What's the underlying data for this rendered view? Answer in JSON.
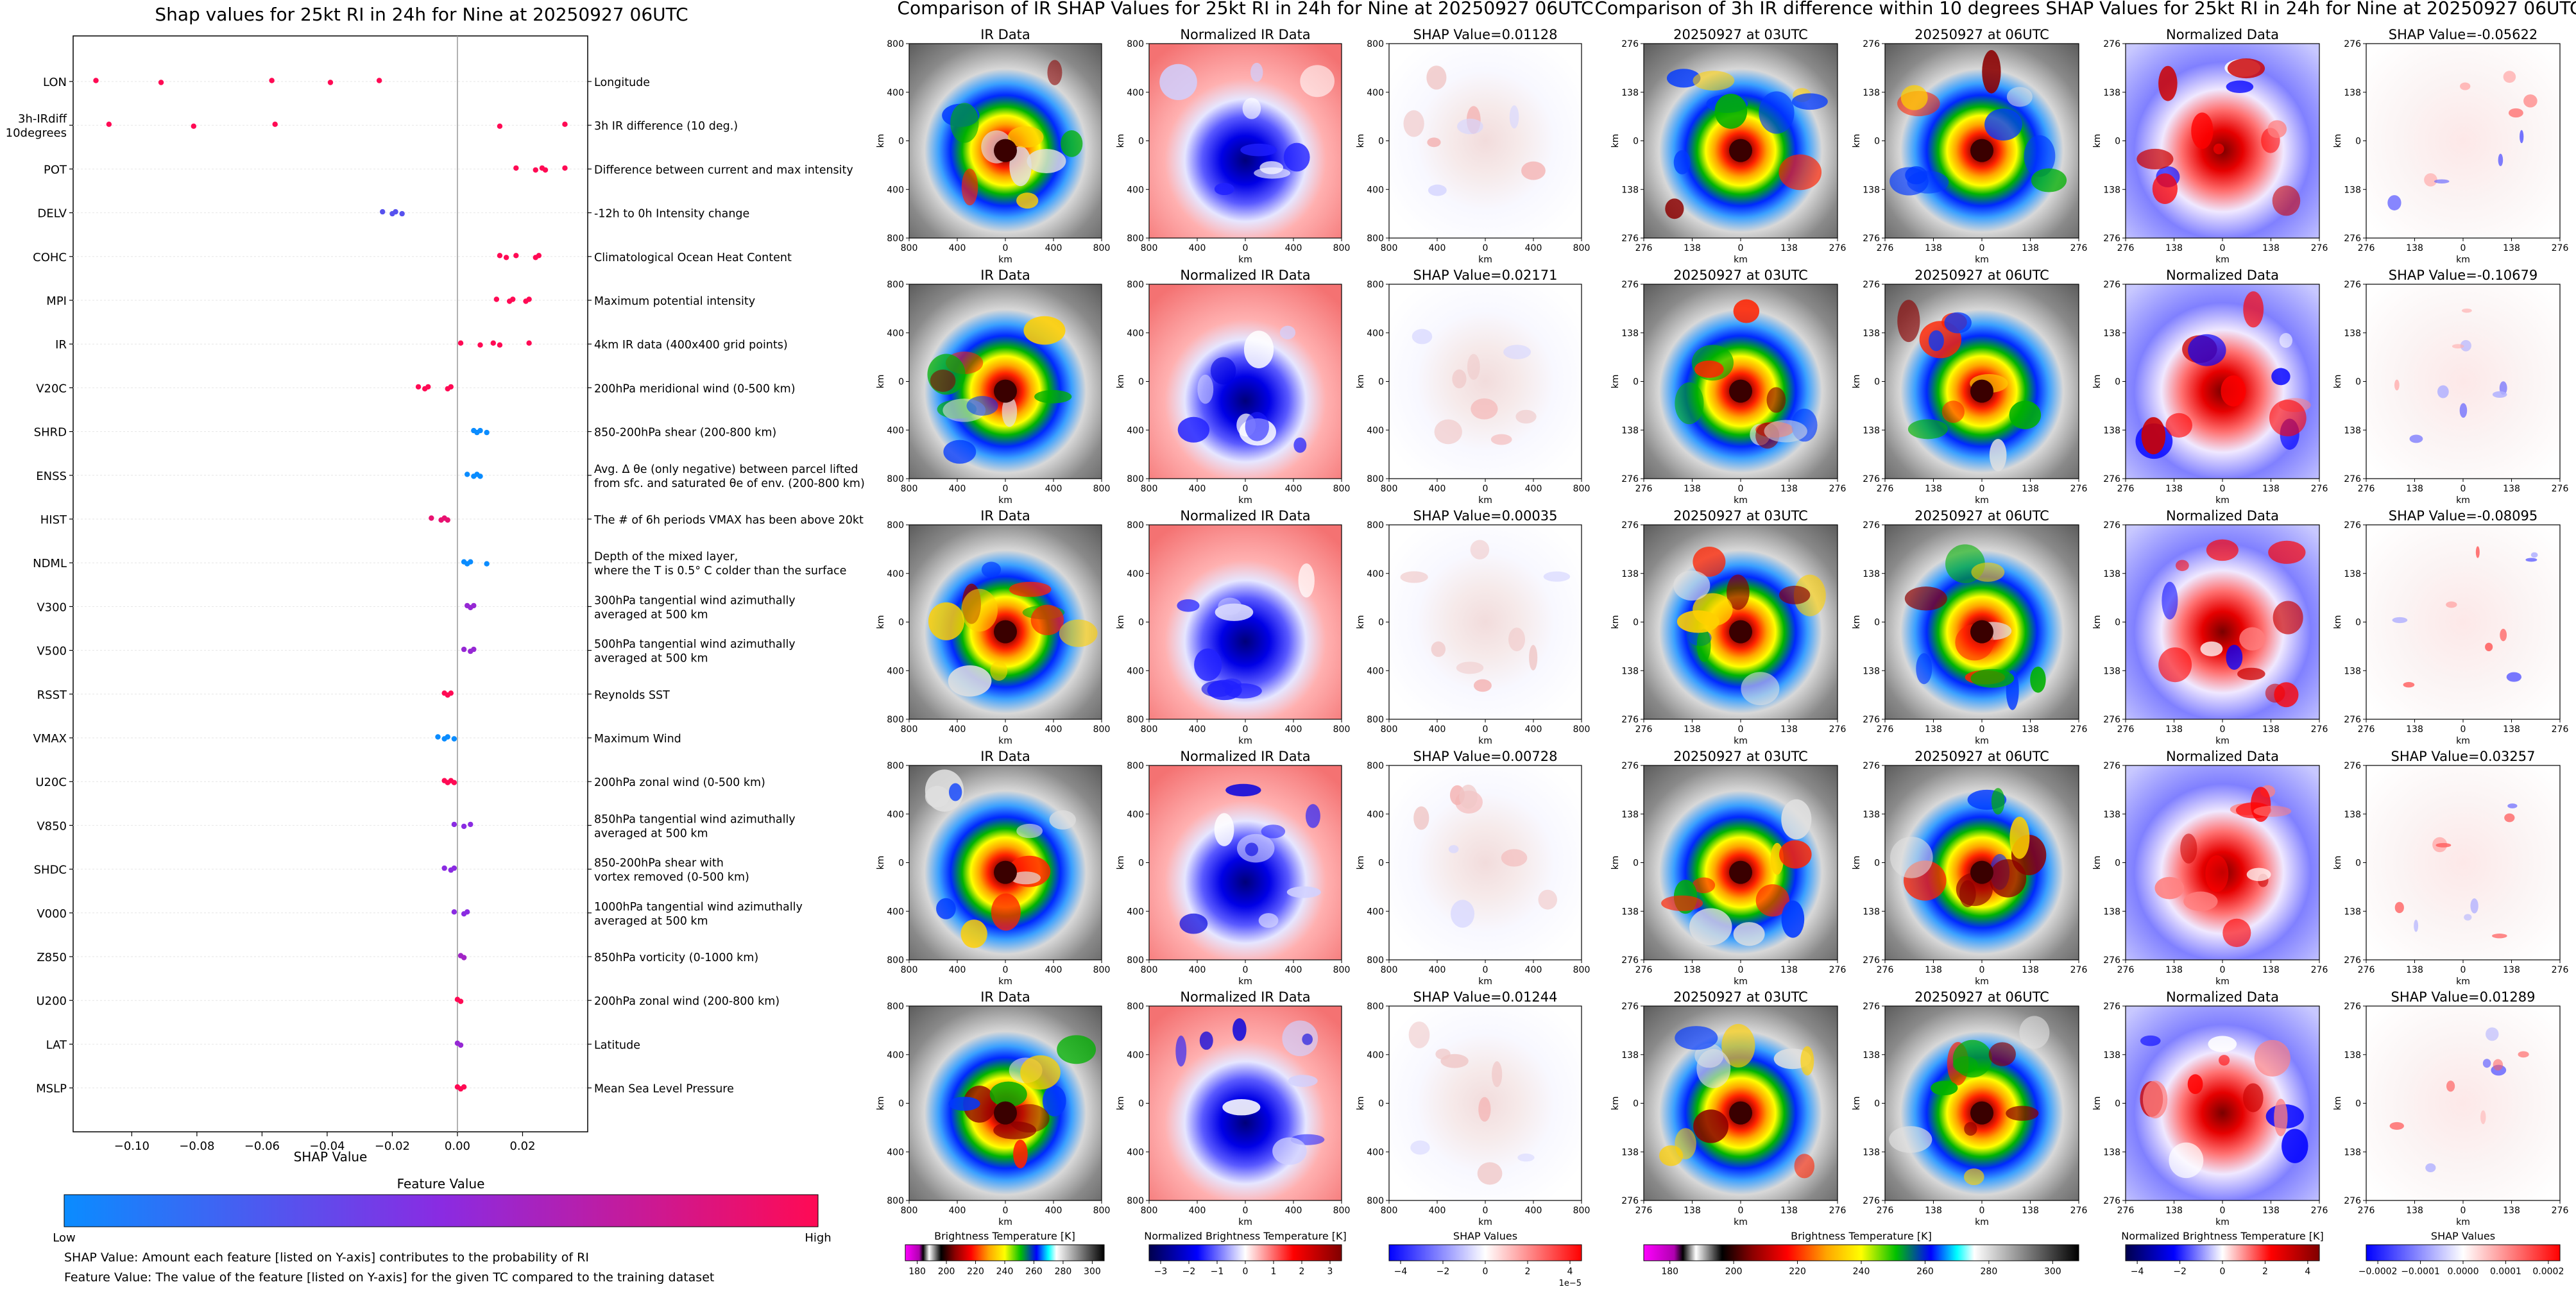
{
  "shap_panel": {
    "title": "Shap values for 25kt RI in 24h for Nine at 20250927 06UTC",
    "xlabel": "SHAP Value",
    "x_ticks": [
      "−0.10",
      "−0.08",
      "−0.06",
      "−0.04",
      "−0.02",
      "0.00",
      "0.02"
    ],
    "colorbar_title": "Feature Value",
    "colorbar_low": "Low",
    "colorbar_high": "High",
    "footnote_1": "SHAP Value: Amount each feature [listed on Y-axis] contributes to the probability of RI",
    "footnote_2": "Feature Value: The value of the feature [listed on Y-axis] for the given TC compared to the training dataset"
  },
  "ir_shap_section": {
    "title": "Comparison of IR SHAP Values for 25kt RI in 24h for Nine at 20250927 06UTC",
    "col_titles": [
      "IR Data",
      "Normalized IR Data"
    ],
    "shap_titles": [
      "SHAP Value=0.01128",
      "SHAP Value=0.02171",
      "SHAP Value=0.00035",
      "SHAP Value=0.00728",
      "SHAP Value=0.01244"
    ],
    "axis_unit": "km",
    "tick_labels": [
      "800",
      "400",
      "0",
      "400",
      "800"
    ],
    "colorbars": [
      {
        "title": "Brightness Temperature [K]",
        "ticks": [
          "180",
          "200",
          "220",
          "240",
          "260",
          "280",
          "300"
        ]
      },
      {
        "title": "Normalized Brightness Temperature [K]",
        "ticks": [
          "−3",
          "−2",
          "−1",
          "0",
          "1",
          "2",
          "3"
        ]
      },
      {
        "title": "SHAP Values",
        "ticks": [
          "−4",
          "−2",
          "0",
          "2",
          "4"
        ],
        "multiplier": "1e−5"
      }
    ]
  },
  "ir3h_section": {
    "title": "Comparison of 3h IR difference within 10 degrees SHAP Values for 25kt RI in 24h for Nine at 20250927 06UTC",
    "col_titles": [
      "20250927 at 03UTC",
      "20250927 at 06UTC",
      "Normalized Data"
    ],
    "shap_titles": [
      "SHAP Value=-0.05622",
      "SHAP Value=-0.10679",
      "SHAP Value=-0.08095",
      "SHAP Value=0.03257",
      "SHAP Value=0.01289"
    ],
    "axis_unit": "km",
    "tick_labels": [
      "276",
      "138",
      "0",
      "138",
      "276"
    ],
    "colorbars": [
      {
        "title": "Brightness Temperature [K]",
        "ticks": [
          "180",
          "200",
          "220",
          "240",
          "260",
          "280",
          "300"
        ]
      },
      {
        "title": "Normalized Brightness Temperature [K]",
        "ticks": [
          "−4",
          "−2",
          "0",
          "2",
          "4"
        ]
      },
      {
        "title": "SHAP Values",
        "ticks": [
          "−0.0002",
          "−0.0001",
          "0.0000",
          "0.0001",
          "0.0002"
        ]
      }
    ]
  },
  "colors": {
    "low": "#0a8cff",
    "mid": "#8a2be2",
    "high": "#ff0a54",
    "ir_gray_dark": "#5a5a5a",
    "ir_gray_light": "#cfcfcf",
    "norm_red": "#f08080",
    "shap_neg": "#2b4bff",
    "shap_pos": "#ff4b3b"
  },
  "chart_data": {
    "type": "scatter",
    "title": "Shap values for 25kt RI in 24h for Nine at 20250927 06UTC",
    "xlabel": "SHAP Value",
    "xlim": [
      -0.118,
      0.04
    ],
    "grid": false,
    "features": [
      {
        "name": "LON",
        "desc": "Longitude",
        "points": [
          [
            -0.111,
            1.0
          ],
          [
            -0.091,
            1.0
          ],
          [
            -0.057,
            1.0
          ],
          [
            -0.039,
            1.0
          ],
          [
            -0.024,
            1.0
          ]
        ]
      },
      {
        "name": "3h-IRdiff\n10degrees",
        "desc": "3h IR difference (10 deg.)",
        "points": [
          [
            -0.107,
            1.0
          ],
          [
            -0.081,
            1.0
          ],
          [
            -0.056,
            1.0
          ],
          [
            0.013,
            1.0
          ],
          [
            0.033,
            1.0
          ]
        ]
      },
      {
        "name": "POT",
        "desc": "Difference between current and max intensity",
        "points": [
          [
            0.018,
            1.0
          ],
          [
            0.024,
            1.0
          ],
          [
            0.026,
            1.0
          ],
          [
            0.027,
            1.0
          ],
          [
            0.033,
            1.0
          ]
        ]
      },
      {
        "name": "DELV",
        "desc": "-12h to 0h Intensity change",
        "points": [
          [
            -0.023,
            0.3
          ],
          [
            -0.02,
            0.3
          ],
          [
            -0.019,
            0.3
          ],
          [
            -0.017,
            0.3
          ]
        ]
      },
      {
        "name": "COHC",
        "desc": "Climatological Ocean Heat Content",
        "points": [
          [
            0.013,
            1.0
          ],
          [
            0.015,
            1.0
          ],
          [
            0.018,
            1.0
          ],
          [
            0.024,
            1.0
          ],
          [
            0.025,
            1.0
          ]
        ]
      },
      {
        "name": "MPI",
        "desc": "Maximum potential intensity",
        "points": [
          [
            0.012,
            1.0
          ],
          [
            0.016,
            1.0
          ],
          [
            0.017,
            1.0
          ],
          [
            0.021,
            1.0
          ],
          [
            0.022,
            1.0
          ]
        ]
      },
      {
        "name": "IR",
        "desc": "4km IR data (400x400 grid points)",
        "points": [
          [
            0.001,
            1.0
          ],
          [
            0.007,
            1.0
          ],
          [
            0.011,
            1.0
          ],
          [
            0.013,
            1.0
          ],
          [
            0.022,
            1.0
          ]
        ]
      },
      {
        "name": "V20C",
        "desc": "200hPa meridional wind (0-500 km)",
        "points": [
          [
            -0.012,
            1.0
          ],
          [
            -0.01,
            1.0
          ],
          [
            -0.009,
            1.0
          ],
          [
            -0.003,
            1.0
          ],
          [
            -0.002,
            1.0
          ]
        ]
      },
      {
        "name": "SHRD",
        "desc": "850-200hPa shear (200-800 km)",
        "points": [
          [
            0.005,
            0.0
          ],
          [
            0.006,
            0.0
          ],
          [
            0.007,
            0.0
          ],
          [
            0.009,
            0.0
          ]
        ]
      },
      {
        "name": "ENSS",
        "desc": "Avg. Δ θe (only negative) between parcel lifted\nfrom sfc. and saturated θe of env. (200-800 km)",
        "points": [
          [
            0.003,
            0.0
          ],
          [
            0.005,
            0.0
          ],
          [
            0.006,
            0.0
          ],
          [
            0.007,
            0.0
          ]
        ]
      },
      {
        "name": "HIST",
        "desc": "The # of 6h periods VMAX has been above 20kt",
        "points": [
          [
            -0.008,
            0.9
          ],
          [
            -0.005,
            0.9
          ],
          [
            -0.004,
            0.9
          ],
          [
            -0.003,
            0.9
          ]
        ]
      },
      {
        "name": "NDML",
        "desc": "Depth of the mixed layer,\nwhere the T is 0.5° C colder than the surface",
        "points": [
          [
            0.002,
            0.0
          ],
          [
            0.003,
            0.0
          ],
          [
            0.004,
            0.0
          ],
          [
            0.009,
            0.0
          ]
        ]
      },
      {
        "name": "V300",
        "desc": "300hPa tangential wind azimuthally\naveraged at 500 km",
        "points": [
          [
            0.003,
            0.55
          ],
          [
            0.004,
            0.55
          ],
          [
            0.005,
            0.55
          ]
        ]
      },
      {
        "name": "V500",
        "desc": "500hPa tangential wind azimuthally\naveraged at 500 km",
        "points": [
          [
            0.002,
            0.55
          ],
          [
            0.004,
            0.55
          ],
          [
            0.005,
            0.55
          ]
        ]
      },
      {
        "name": "RSST",
        "desc": "Reynolds SST",
        "points": [
          [
            -0.004,
            1.0
          ],
          [
            -0.003,
            1.0
          ],
          [
            -0.002,
            1.0
          ]
        ]
      },
      {
        "name": "VMAX",
        "desc": "Maximum Wind",
        "points": [
          [
            -0.006,
            0.0
          ],
          [
            -0.004,
            0.0
          ],
          [
            -0.003,
            0.0
          ],
          [
            -0.001,
            0.0
          ]
        ]
      },
      {
        "name": "U20C",
        "desc": "200hPa zonal wind (0-500 km)",
        "points": [
          [
            -0.004,
            1.0
          ],
          [
            -0.003,
            1.0
          ],
          [
            -0.002,
            1.0
          ],
          [
            -0.001,
            1.0
          ]
        ]
      },
      {
        "name": "V850",
        "desc": "850hPa tangential wind azimuthally\naveraged at 500 km",
        "points": [
          [
            -0.001,
            0.5
          ],
          [
            0.002,
            0.5
          ],
          [
            0.004,
            0.5
          ]
        ]
      },
      {
        "name": "SHDC",
        "desc": "850-200hPa shear with\nvortex removed (0-500 km)",
        "points": [
          [
            -0.004,
            0.5
          ],
          [
            -0.002,
            0.5
          ],
          [
            -0.001,
            0.5
          ]
        ]
      },
      {
        "name": "V000",
        "desc": "1000hPa tangential wind azimuthally\naveraged at 500 km",
        "points": [
          [
            -0.001,
            0.5
          ],
          [
            0.002,
            0.5
          ],
          [
            0.003,
            0.5
          ]
        ]
      },
      {
        "name": "Z850",
        "desc": "850hPa vorticity (0-1000 km)",
        "points": [
          [
            0.001,
            0.6
          ],
          [
            0.002,
            0.6
          ]
        ]
      },
      {
        "name": "U200",
        "desc": "200hPa zonal wind (200-800 km)",
        "points": [
          [
            0.0,
            1.0
          ],
          [
            0.001,
            1.0
          ]
        ]
      },
      {
        "name": "LAT",
        "desc": "Latitude",
        "points": [
          [
            0.0,
            0.55
          ],
          [
            0.001,
            0.55
          ]
        ]
      },
      {
        "name": "MSLP",
        "desc": "Mean Sea Level Pressure",
        "points": [
          [
            0.0,
            1.0
          ],
          [
            0.001,
            1.0
          ],
          [
            0.002,
            1.0
          ]
        ]
      }
    ]
  }
}
